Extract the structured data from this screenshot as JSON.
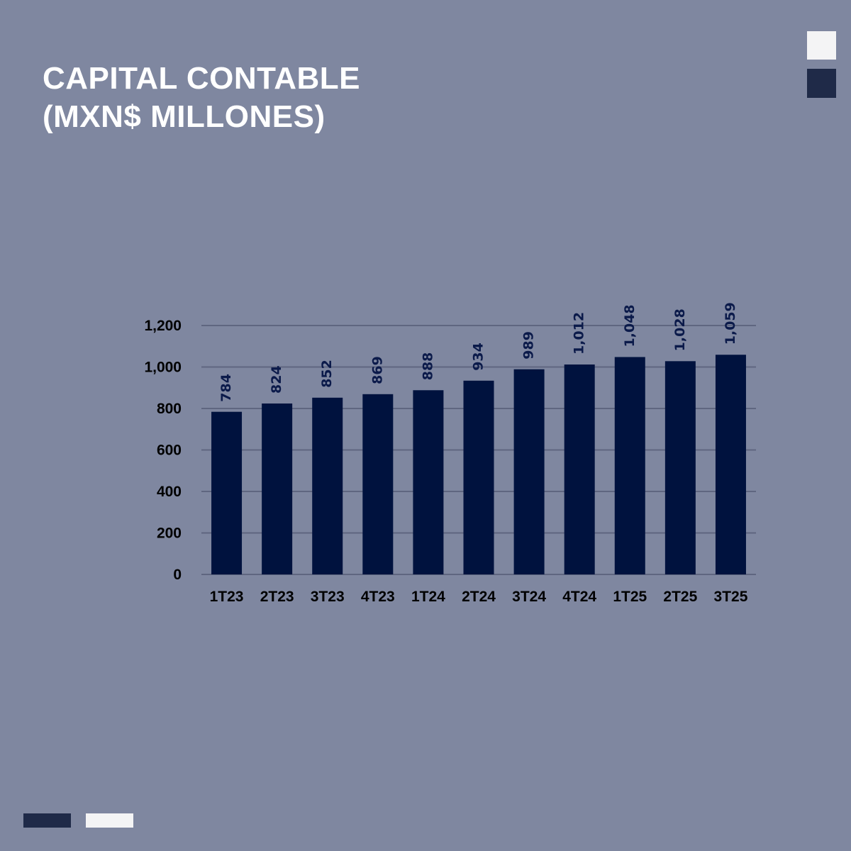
{
  "title_lines": [
    "CAPITAL CONTABLE",
    "(MXN$ MILLONES)"
  ],
  "colors": {
    "background": "#7f87a0",
    "bar": "#00123e",
    "gridline": "#5f6680",
    "axis_label": "#000000",
    "data_label": "#0b1a4a",
    "accent_dark": "#1f2a48",
    "accent_light": "#f4f4f5"
  },
  "chart_data": {
    "type": "bar",
    "categories": [
      "1T23",
      "2T23",
      "3T23",
      "4T23",
      "1T24",
      "2T24",
      "3T24",
      "4T24",
      "1T25",
      "2T25",
      "3T25"
    ],
    "values": [
      784,
      824,
      852,
      869,
      888,
      934,
      989,
      1012,
      1048,
      1028,
      1059
    ],
    "data_labels": [
      "784",
      "824",
      "852",
      "869",
      "888",
      "934",
      "989",
      "1,012",
      "1,048",
      "1,028",
      "1,059"
    ],
    "yticks": [
      0,
      200,
      400,
      600,
      800,
      1000,
      1200
    ],
    "ytick_labels": [
      "0",
      "200",
      "400",
      "600",
      "800",
      "1,000",
      "1,200"
    ],
    "ylim": [
      0,
      1200
    ],
    "grid": true,
    "data_label_rotation": "vertical"
  }
}
